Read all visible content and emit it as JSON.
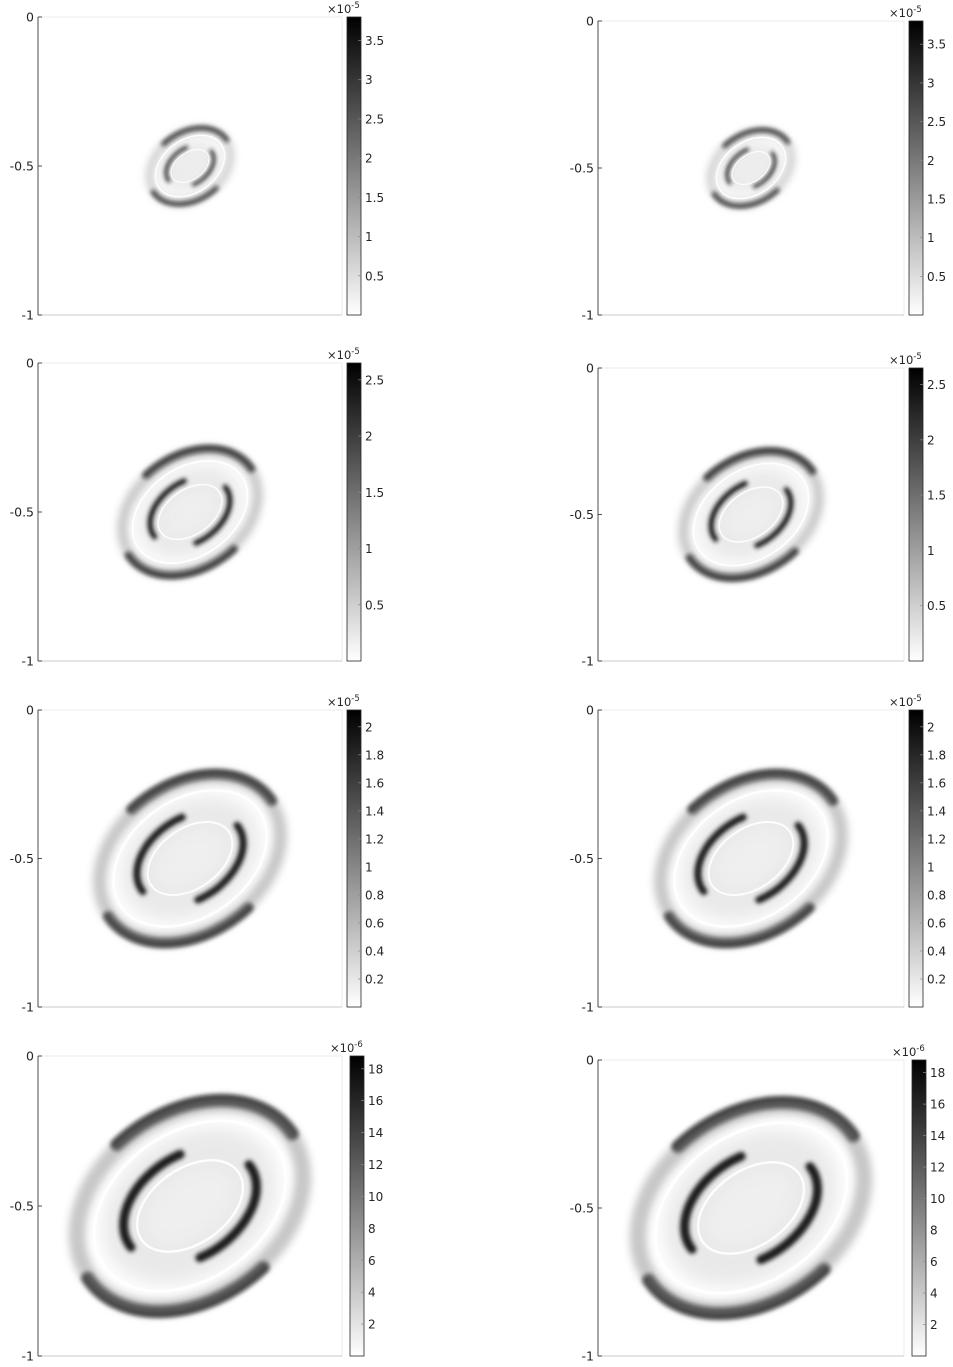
{
  "figure": {
    "panels": [
      {
        "id": "r1c1",
        "y_ticks": [
          "0",
          "-0.5",
          "-1"
        ],
        "colorbar": {
          "multiplier": "×10",
          "exponent": "-5",
          "max": 3.8,
          "ticks": [
            "3.5",
            "3",
            "2.5",
            "2",
            "1.5",
            "1",
            "0.5"
          ]
        },
        "pattern": {
          "scale": 0.36,
          "max_intensity": 1.0
        }
      },
      {
        "id": "r1c2",
        "y_ticks": [
          "0",
          "-0.5",
          "-1"
        ],
        "colorbar": {
          "multiplier": "×10",
          "exponent": "-5",
          "max": 3.8,
          "ticks": [
            "3.5",
            "3",
            "2.5",
            "2",
            "1.5",
            "1",
            "0.5"
          ]
        },
        "pattern": {
          "scale": 0.36,
          "max_intensity": 1.0
        }
      },
      {
        "id": "r2c1",
        "y_ticks": [
          "0",
          "-0.5",
          "-1"
        ],
        "colorbar": {
          "multiplier": "×10",
          "exponent": "-5",
          "max": 2.65,
          "ticks": [
            "2.5",
            "2",
            "1.5",
            "1",
            "0.5"
          ]
        },
        "pattern": {
          "scale": 0.6,
          "max_intensity": 1.0
        }
      },
      {
        "id": "r2c2",
        "y_ticks": [
          "0",
          "-0.5",
          "-1"
        ],
        "colorbar": {
          "multiplier": "×10",
          "exponent": "-5",
          "max": 2.65,
          "ticks": [
            "2.5",
            "2",
            "1.5",
            "1",
            "0.5"
          ]
        },
        "pattern": {
          "scale": 0.6,
          "max_intensity": 1.0
        }
      },
      {
        "id": "r3c1",
        "y_ticks": [
          "0",
          "-0.5",
          "-1"
        ],
        "colorbar": {
          "multiplier": "×10",
          "exponent": "-5",
          "max": 2.12,
          "ticks": [
            "2",
            "1.8",
            "1.6",
            "1.4",
            "1.2",
            "1",
            "0.8",
            "0.6",
            "0.4",
            "0.2"
          ]
        },
        "pattern": {
          "scale": 0.8,
          "max_intensity": 1.0
        }
      },
      {
        "id": "r3c2",
        "y_ticks": [
          "0",
          "-0.5",
          "-1"
        ],
        "colorbar": {
          "multiplier": "×10",
          "exponent": "-5",
          "max": 2.12,
          "ticks": [
            "2",
            "1.8",
            "1.6",
            "1.4",
            "1.2",
            "1",
            "0.8",
            "0.6",
            "0.4",
            "0.2"
          ]
        },
        "pattern": {
          "scale": 0.8,
          "max_intensity": 1.0
        }
      },
      {
        "id": "r4c1",
        "y_ticks": [
          "0",
          "-0.5",
          "-1"
        ],
        "colorbar": {
          "multiplier": "×10",
          "exponent": "-6",
          "max": 18.8,
          "ticks": [
            "18",
            "16",
            "14",
            "12",
            "10",
            "8",
            "6",
            "4",
            "2"
          ]
        },
        "pattern": {
          "scale": 1.0,
          "max_intensity": 1.0
        }
      },
      {
        "id": "r4c2",
        "y_ticks": [
          "0",
          "-0.5",
          "-1"
        ],
        "colorbar": {
          "multiplier": "×10",
          "exponent": "-6",
          "max": 18.8,
          "ticks": [
            "18",
            "16",
            "14",
            "12",
            "10",
            "8",
            "6",
            "4",
            "2"
          ]
        },
        "pattern": {
          "scale": 1.0,
          "max_intensity": 1.0
        }
      }
    ],
    "colormap": "gray-reversed",
    "background_color": "#ffffff",
    "axis_color": "#262626"
  }
}
